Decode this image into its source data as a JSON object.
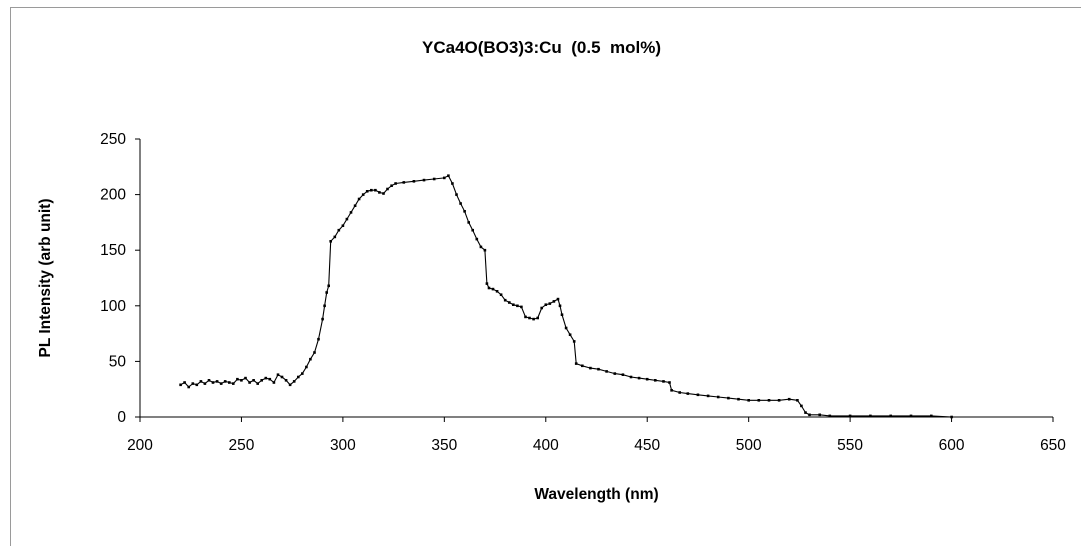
{
  "chart_data": {
    "type": "scatter",
    "title": "YCa4O(BO3)3:Cu  (0.5  mol%)",
    "xlabel": "Wavelength (nm)",
    "ylabel": "PL Intensity (arb unit)",
    "xlim": [
      200,
      650
    ],
    "ylim": [
      0,
      250
    ],
    "xticks": [
      200,
      250,
      300,
      350,
      400,
      450,
      500,
      550,
      600,
      650
    ],
    "yticks": [
      0,
      50,
      100,
      150,
      200,
      250
    ],
    "grid": false,
    "legend": "none",
    "series": [
      {
        "color": "#000000",
        "marker": "point",
        "line": true,
        "points": [
          [
            220,
            29
          ],
          [
            222,
            31
          ],
          [
            224,
            27
          ],
          [
            226,
            30
          ],
          [
            228,
            29
          ],
          [
            230,
            32
          ],
          [
            232,
            30
          ],
          [
            234,
            33
          ],
          [
            236,
            31
          ],
          [
            238,
            32
          ],
          [
            240,
            30
          ],
          [
            242,
            32
          ],
          [
            244,
            31
          ],
          [
            246,
            30
          ],
          [
            248,
            34
          ],
          [
            250,
            33
          ],
          [
            252,
            35
          ],
          [
            254,
            31
          ],
          [
            256,
            33
          ],
          [
            258,
            30
          ],
          [
            260,
            33
          ],
          [
            262,
            35
          ],
          [
            264,
            34
          ],
          [
            266,
            31
          ],
          [
            268,
            38
          ],
          [
            270,
            36
          ],
          [
            272,
            33
          ],
          [
            274,
            29
          ],
          [
            276,
            32
          ],
          [
            278,
            36
          ],
          [
            280,
            39
          ],
          [
            282,
            45
          ],
          [
            284,
            52
          ],
          [
            286,
            58
          ],
          [
            288,
            70
          ],
          [
            290,
            88
          ],
          [
            291,
            100
          ],
          [
            292,
            112
          ],
          [
            293,
            118
          ],
          [
            294,
            158
          ],
          [
            296,
            162
          ],
          [
            298,
            168
          ],
          [
            300,
            172
          ],
          [
            302,
            178
          ],
          [
            304,
            184
          ],
          [
            306,
            190
          ],
          [
            308,
            196
          ],
          [
            310,
            200
          ],
          [
            312,
            203
          ],
          [
            314,
            204
          ],
          [
            316,
            204
          ],
          [
            318,
            202
          ],
          [
            320,
            201
          ],
          [
            322,
            205
          ],
          [
            324,
            208
          ],
          [
            326,
            210
          ],
          [
            330,
            211
          ],
          [
            335,
            212
          ],
          [
            340,
            213
          ],
          [
            345,
            214
          ],
          [
            350,
            215
          ],
          [
            352,
            217
          ],
          [
            354,
            210
          ],
          [
            356,
            200
          ],
          [
            358,
            192
          ],
          [
            360,
            185
          ],
          [
            362,
            175
          ],
          [
            364,
            168
          ],
          [
            366,
            160
          ],
          [
            368,
            153
          ],
          [
            370,
            150
          ],
          [
            371,
            120
          ],
          [
            372,
            116
          ],
          [
            374,
            115
          ],
          [
            376,
            113
          ],
          [
            378,
            110
          ],
          [
            380,
            105
          ],
          [
            382,
            103
          ],
          [
            384,
            101
          ],
          [
            386,
            100
          ],
          [
            388,
            99
          ],
          [
            390,
            90
          ],
          [
            392,
            89
          ],
          [
            394,
            88
          ],
          [
            396,
            89
          ],
          [
            398,
            98
          ],
          [
            400,
            101
          ],
          [
            402,
            102
          ],
          [
            404,
            104
          ],
          [
            406,
            106
          ],
          [
            407,
            100
          ],
          [
            408,
            92
          ],
          [
            410,
            80
          ],
          [
            412,
            74
          ],
          [
            414,
            68
          ],
          [
            415,
            48
          ],
          [
            418,
            46
          ],
          [
            422,
            44
          ],
          [
            426,
            43
          ],
          [
            430,
            41
          ],
          [
            434,
            39
          ],
          [
            438,
            38
          ],
          [
            442,
            36
          ],
          [
            446,
            35
          ],
          [
            450,
            34
          ],
          [
            454,
            33
          ],
          [
            458,
            32
          ],
          [
            461,
            31
          ],
          [
            462,
            24
          ],
          [
            466,
            22
          ],
          [
            470,
            21
          ],
          [
            475,
            20
          ],
          [
            480,
            19
          ],
          [
            485,
            18
          ],
          [
            490,
            17
          ],
          [
            495,
            16
          ],
          [
            500,
            15
          ],
          [
            505,
            15
          ],
          [
            510,
            15
          ],
          [
            515,
            15
          ],
          [
            520,
            16
          ],
          [
            524,
            15
          ],
          [
            526,
            10
          ],
          [
            528,
            4
          ],
          [
            530,
            2
          ],
          [
            535,
            2
          ],
          [
            540,
            1
          ],
          [
            550,
            1
          ],
          [
            560,
            1
          ],
          [
            570,
            1
          ],
          [
            580,
            1
          ],
          [
            590,
            1
          ],
          [
            600,
            0
          ]
        ]
      }
    ]
  }
}
